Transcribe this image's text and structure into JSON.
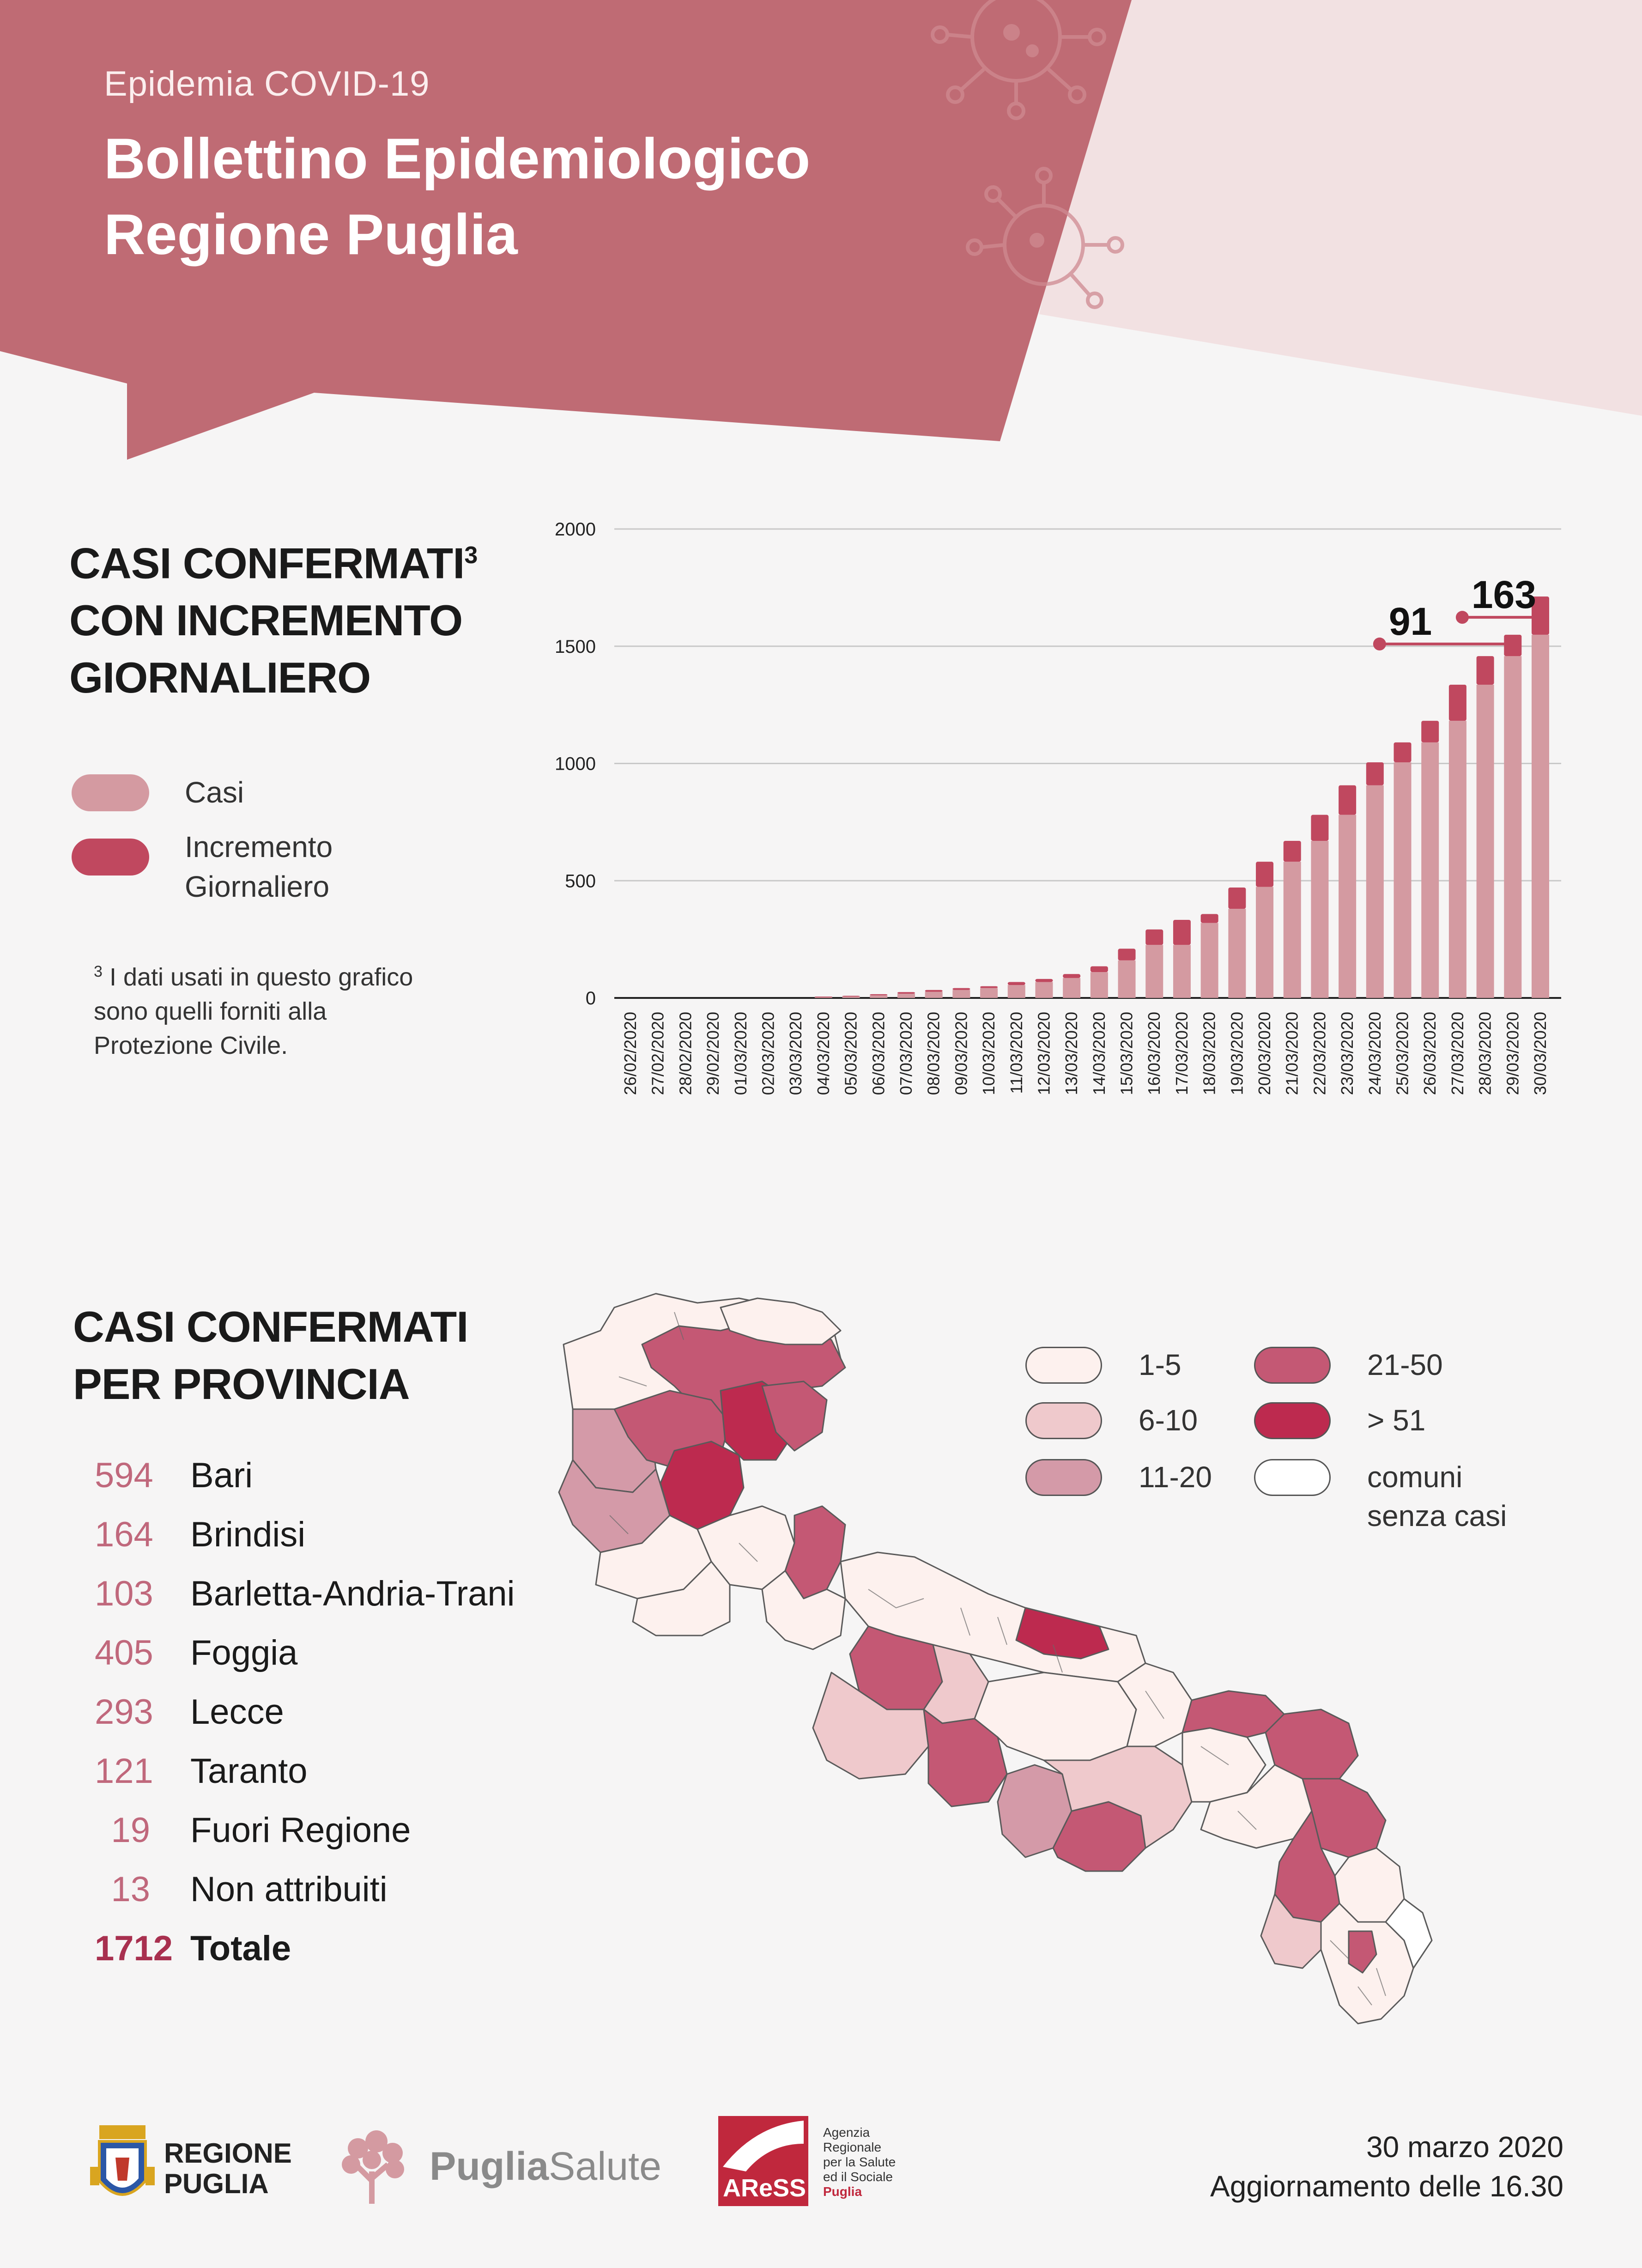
{
  "header": {
    "supertitle": "Epidemia COVID-19",
    "title_line1": "Bollettino Epidemiologico",
    "title_line2": "Regione Puglia"
  },
  "colors": {
    "banner": "#bf6b74",
    "banner_light": "#f2e1e2",
    "casi": "#d49aa1",
    "incremento": "#c0485f",
    "legend_1_5": "#fdf1ee",
    "legend_6_10": "#efc9cc",
    "legend_11_20": "#d49aa8",
    "legend_21_50": "#c45874",
    "legend_51": "#bd2a4f",
    "legend_none": "#ffffff"
  },
  "section1": {
    "title_line1": "CASI CONFERMATI",
    "title_sup": "3",
    "title_line2": "CON INCREMENTO",
    "title_line3": "GIORNALIERO",
    "legend": [
      {
        "label_line1": "Casi",
        "label_line2": ""
      },
      {
        "label_line1": "Incremento",
        "label_line2": "Giornaliero"
      }
    ],
    "footnote_sup": "3",
    "footnote_line1": "I dati usati in questo grafico",
    "footnote_line2": "sono quelli forniti alla",
    "footnote_line3": "Protezione Civile."
  },
  "chart_data": {
    "type": "bar",
    "stacked": true,
    "categories": [
      "26/02/2020",
      "27/02/2020",
      "28/02/2020",
      "29/02/2020",
      "01/03/2020",
      "02/03/2020",
      "03/03/2020",
      "04/03/2020",
      "05/03/2020",
      "06/03/2020",
      "07/03/2020",
      "08/03/2020",
      "09/03/2020",
      "10/03/2020",
      "11/03/2020",
      "12/03/2020",
      "13/03/2020",
      "14/03/2020",
      "15/03/2020",
      "16/03/2020",
      "17/03/2020",
      "18/03/2020",
      "19/03/2020",
      "20/03/2020",
      "21/03/2020",
      "22/03/2020",
      "23/03/2020",
      "24/03/2020",
      "25/03/2020",
      "26/03/2020",
      "27/03/2020",
      "28/03/2020",
      "29/03/2020",
      "30/03/2020"
    ],
    "series": [
      {
        "name": "Casi",
        "values": [
          0,
          0,
          0,
          0,
          0,
          0,
          0,
          3,
          6,
          11,
          18,
          26,
          34,
          42,
          55,
          68,
          85,
          110,
          160,
          226,
          226,
          320,
          380,
          474,
          581,
          670,
          781,
          907,
          1005,
          1090,
          1182,
          1336,
          1458,
          1549
        ]
      },
      {
        "name": "Incremento Giornaliero",
        "values": [
          0,
          0,
          0,
          0,
          0,
          0,
          0,
          3,
          3,
          5,
          7,
          8,
          8,
          8,
          13,
          13,
          17,
          25,
          50,
          66,
          107,
          38,
          91,
          107,
          89,
          111,
          126,
          98,
          85,
          92,
          154,
          122,
          91,
          163
        ]
      }
    ],
    "ylim": [
      0,
      2000
    ],
    "yticks": [
      0,
      500,
      1000,
      1500,
      2000
    ],
    "ytick_labels": [
      "0",
      "500",
      "1000",
      "1500",
      "2000"
    ],
    "grid": true,
    "annotations": [
      {
        "label": "91",
        "category": "29/03/2020",
        "value": 91
      },
      {
        "label": "163",
        "category": "30/03/2020",
        "value": 163
      }
    ]
  },
  "section2": {
    "title_line1": "CASI CONFERMATI",
    "title_line2": "PER PROVINCIA",
    "provinces": [
      {
        "value": "594",
        "name": "Bari"
      },
      {
        "value": "164",
        "name": "Brindisi"
      },
      {
        "value": "103",
        "name": "Barletta-Andria-Trani"
      },
      {
        "value": "405",
        "name": "Foggia"
      },
      {
        "value": "293",
        "name": "Lecce"
      },
      {
        "value": "121",
        "name": "Taranto"
      },
      {
        "value": "19",
        "name": "Fuori Regione"
      },
      {
        "value": "13",
        "name": "Non attribuiti"
      }
    ],
    "total": {
      "value": "1712",
      "name": "Totale"
    },
    "map_legend": [
      {
        "label_line1": "1-5",
        "label_line2": ""
      },
      {
        "label_line1": "21-50",
        "label_line2": ""
      },
      {
        "label_line1": "6-10",
        "label_line2": ""
      },
      {
        "label_line1": "> 51",
        "label_line2": ""
      },
      {
        "label_line1": "11-20",
        "label_line2": ""
      },
      {
        "label_line1": "comuni",
        "label_line2": "senza casi"
      }
    ]
  },
  "footer": {
    "logo1_line1": "REGIONE",
    "logo1_line2": "PUGLIA",
    "logo2_a": "Puglia",
    "logo2_b": "Salute",
    "logo3_text": "AReSS",
    "logo3_desc_1": "Agenzia",
    "logo3_desc_2": "Regionale",
    "logo3_desc_3": "per la Salute",
    "logo3_desc_4": "ed il Sociale",
    "logo3_desc_5": "Puglia",
    "date": "30 marzo 2020",
    "update": "Aggiornamento delle 16.30"
  }
}
